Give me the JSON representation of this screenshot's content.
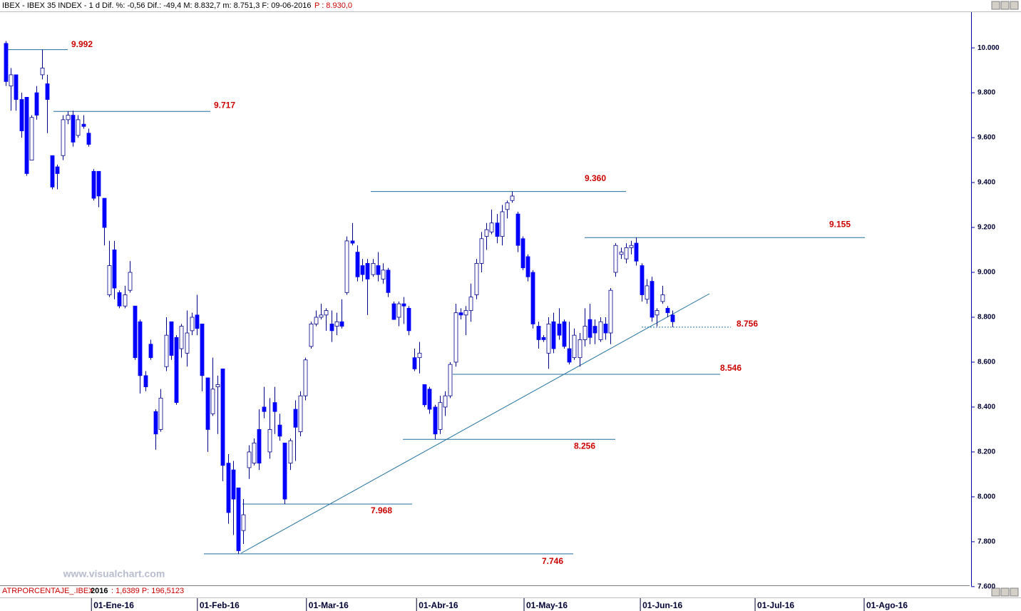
{
  "chart_data": {
    "type": "candlestick",
    "title": "IBEX - IBEX 35 INDEX - 1 d  Dif. %: -0,56  Dif.: -49,4  M: 8.832,7  m: 8.751,3  F: 09-06-2016",
    "price_label": "P : 8.930,0",
    "watermark": "www.visualchart.com",
    "indicator_label": "ATRPORCENTAJE_.IBEX",
    "indicator_year": "2016",
    "indicator_values": " : 1,6389  P: 196,5123",
    "x": [
      0,
      1,
      2,
      3,
      4,
      5,
      6,
      7,
      8,
      9,
      10,
      11,
      12,
      13,
      14,
      15,
      16,
      17,
      18,
      19,
      20,
      21,
      22,
      23,
      24,
      25,
      26,
      27,
      28,
      29,
      30,
      31,
      32,
      33,
      34,
      35,
      36,
      37,
      38,
      39,
      40,
      41,
      42,
      43,
      44,
      45,
      46,
      47,
      48,
      49,
      50,
      51,
      52,
      53,
      54,
      55,
      56,
      57,
      58,
      59,
      60,
      61,
      62,
      63,
      64,
      65,
      66,
      67,
      68,
      69,
      70,
      71,
      72,
      73,
      74,
      75,
      76,
      77,
      78,
      79,
      80,
      81,
      82,
      83,
      84,
      85,
      86,
      87,
      88,
      89,
      90,
      91,
      92,
      93,
      94,
      95,
      96,
      97,
      98,
      99,
      100,
      101,
      102,
      103,
      104,
      105,
      106,
      107,
      108,
      109,
      110,
      111,
      112,
      113,
      114,
      115,
      116,
      117,
      118,
      119,
      120,
      121,
      122,
      123,
      124,
      125,
      126,
      127,
      128,
      129
    ],
    "open": [
      10020,
      9830,
      9880,
      9770,
      9780,
      9500,
      9800,
      9880,
      9840,
      9520,
      9470,
      9520,
      9680,
      9700,
      9610,
      9660,
      9620,
      9450,
      9450,
      9330,
      8900,
      9100,
      8910,
      8850,
      8920,
      8850,
      8780,
      8540,
      8680,
      8380,
      8300,
      8580,
      8780,
      8710,
      8660,
      8640,
      8740,
      8810,
      8770,
      8530,
      8370,
      8490,
      8570,
      8150,
      8120,
      8040,
      7850,
      8130,
      8150,
      8300,
      8400,
      8200,
      8420,
      8320,
      8240,
      8150,
      8390,
      8290,
      8450,
      8670,
      8770,
      8800,
      8810,
      8770,
      8760,
      8780,
      8910,
      9140,
      9090,
      9030,
      9040,
      8990,
      9030,
      8970,
      9010,
      8860,
      8800,
      8860,
      8840,
      8620,
      8620,
      8500,
      8480,
      8400,
      8300,
      8400,
      8450,
      8600,
      8820,
      8810,
      8830,
      8900,
      9040,
      9160,
      9180,
      9220,
      9160,
      9280,
      9320,
      9260,
      9150,
      9070,
      9000,
      8760,
      8710,
      8640,
      8780,
      8770,
      8780,
      8660,
      8620,
      8620,
      8700,
      8790,
      8760,
      8700,
      8770,
      8730,
      9000,
      9080,
      9060,
      9110,
      9130,
      9030,
      8880,
      8960,
      8810,
      8870,
      8840,
      8810
    ],
    "high": [
      10030,
      9910,
      9880,
      9800,
      9780,
      9700,
      9830,
      9992,
      9880,
      9520,
      9480,
      9700,
      9717,
      9720,
      9700,
      9700,
      9640,
      9460,
      9450,
      9330,
      9140,
      9140,
      8920,
      8940,
      9050,
      8850,
      8790,
      8560,
      8700,
      8390,
      8480,
      8800,
      8780,
      8720,
      8770,
      8830,
      8820,
      8900,
      8770,
      8530,
      8620,
      8540,
      8570,
      8190,
      8160,
      8040,
      7990,
      8230,
      8260,
      8390,
      8490,
      8440,
      8490,
      8370,
      8240,
      8260,
      8430,
      8470,
      8620,
      8780,
      8830,
      8860,
      8840,
      8830,
      8820,
      8880,
      9160,
      9220,
      9120,
      9060,
      9060,
      9060,
      9090,
      9040,
      9020,
      8870,
      8870,
      8890,
      8850,
      8660,
      8690,
      8500,
      8490,
      8410,
      8450,
      8470,
      8600,
      8860,
      8840,
      8850,
      8950,
      9060,
      9180,
      9220,
      9280,
      9260,
      9300,
      9320,
      9360,
      9270,
      9160,
      9080,
      9010,
      8780,
      8720,
      8800,
      8820,
      8840,
      8790,
      8780,
      8750,
      8730,
      8840,
      8860,
      8790,
      8800,
      8800,
      8930,
      9130,
      9110,
      9130,
      9140,
      9155,
      9040,
      8970,
      8980,
      8840,
      8940,
      8850,
      8830
    ],
    "low": [
      9830,
      9720,
      9720,
      9600,
      9430,
      9500,
      9680,
      9860,
      9620,
      9370,
      9370,
      9500,
      9660,
      9560,
      9600,
      9640,
      9560,
      9320,
      9290,
      9120,
      8890,
      8880,
      8840,
      8840,
      8910,
      8610,
      8460,
      8470,
      8610,
      8210,
      8290,
      8560,
      8610,
      8410,
      8620,
      8580,
      8720,
      8720,
      8470,
      8200,
      8360,
      8280,
      8070,
      7880,
      7830,
      7746,
      7790,
      8080,
      8140,
      8120,
      8350,
      8170,
      8280,
      8250,
      7968,
      8120,
      8160,
      8270,
      8430,
      8660,
      8760,
      8790,
      8740,
      8690,
      8720,
      8750,
      8900,
      9120,
      8960,
      8960,
      8810,
      8980,
      8960,
      8950,
      8890,
      8790,
      8760,
      8770,
      8720,
      8560,
      8550,
      8400,
      8370,
      8256,
      8280,
      8360,
      8440,
      8580,
      8790,
      8720,
      8780,
      8880,
      9000,
      9100,
      9170,
      9130,
      9120,
      9240,
      9310,
      9090,
      9010,
      8960,
      8750,
      8660,
      8690,
      8570,
      8640,
      8700,
      8660,
      8590,
      8610,
      8580,
      8670,
      8680,
      8680,
      8690,
      8700,
      8680,
      8980,
      9060,
      9040,
      9080,
      9030,
      8870,
      8860,
      8780,
      8760,
      8860,
      8800,
      8756
    ],
    "close": [
      9850,
      9880,
      9770,
      9630,
      9440,
      9690,
      9700,
      9910,
      9770,
      9380,
      9440,
      9680,
      9700,
      9580,
      9680,
      9650,
      9570,
      9330,
      9340,
      9200,
      9030,
      8930,
      8850,
      8900,
      9000,
      8620,
      8540,
      8490,
      8620,
      8280,
      8440,
      8720,
      8630,
      8420,
      8760,
      8730,
      8800,
      8750,
      8540,
      8300,
      8480,
      8500,
      8140,
      7930,
      7990,
      7760,
      7920,
      8200,
      8240,
      8150,
      8380,
      8300,
      8380,
      8270,
      7990,
      8250,
      8310,
      8450,
      8610,
      8770,
      8800,
      8810,
      8830,
      8740,
      8780,
      8760,
      9140,
      9130,
      8980,
      8990,
      8970,
      9040,
      8990,
      9010,
      8910,
      8790,
      8860,
      8850,
      8740,
      8570,
      8640,
      8410,
      8390,
      8280,
      8420,
      8450,
      8590,
      8820,
      8810,
      8830,
      8890,
      9040,
      9150,
      9190,
      9220,
      9160,
      9270,
      9310,
      9340,
      9120,
      9020,
      8980,
      8770,
      8700,
      8700,
      8770,
      8660,
      8720,
      8670,
      8600,
      8720,
      8700,
      8760,
      8710,
      8730,
      8780,
      8730,
      8920,
      9120,
      9090,
      9110,
      9120,
      9050,
      8900,
      8940,
      8800,
      8830,
      8900,
      8820,
      8780
    ],
    "up_color": "#ffffff",
    "down_color": "#0000ff",
    "outline_color": "#00008b",
    "xlim": [
      -1.1,
      186.5
    ],
    "xticks": [
      {
        "value": 17.0,
        "label": "01-Ene-16"
      },
      {
        "value": 37.5,
        "label": "01-Feb-16"
      },
      {
        "value": 58.6,
        "label": "01-Mar-16"
      },
      {
        "value": 79.9,
        "label": "01-Abr-16"
      },
      {
        "value": 100.7,
        "label": "01-May-16"
      },
      {
        "value": 123.2,
        "label": "01-Jun-16"
      },
      {
        "value": 145.4,
        "label": "01-Jul-16"
      },
      {
        "value": 166.5,
        "label": "01-Ago-16"
      }
    ],
    "ylim": [
      7609,
      10156
    ],
    "yticks": [
      {
        "value": 7600,
        "label": "7.600"
      },
      {
        "value": 7800,
        "label": "7.800"
      },
      {
        "value": 8000,
        "label": "8.000"
      },
      {
        "value": 8200,
        "label": "8.200"
      },
      {
        "value": 8400,
        "label": "8.400"
      },
      {
        "value": 8600,
        "label": "8.600"
      },
      {
        "value": 8800,
        "label": "8.800"
      },
      {
        "value": 9000,
        "label": "9.000"
      },
      {
        "value": 9200,
        "label": "9.200"
      },
      {
        "value": 9400,
        "label": "9.400"
      },
      {
        "value": 9600,
        "label": "9.600"
      },
      {
        "value": 9800,
        "label": "9.800"
      },
      {
        "value": 10000,
        "label": "10.000"
      }
    ],
    "levels": [
      {
        "value": 9992,
        "label": "9.992"
      },
      {
        "value": 9717,
        "label": "9.717"
      },
      {
        "value": 9360,
        "label": "9.360"
      },
      {
        "value": 9155,
        "label": "9.155"
      },
      {
        "value": 8756,
        "label": "8.756"
      },
      {
        "value": 8546,
        "label": "8.546"
      },
      {
        "value": 8256,
        "label": "8.256"
      },
      {
        "value": 7968,
        "label": "7.968"
      },
      {
        "value": 7746,
        "label": "7.746"
      }
    ],
    "level_color": "#1f6f9f"
  }
}
